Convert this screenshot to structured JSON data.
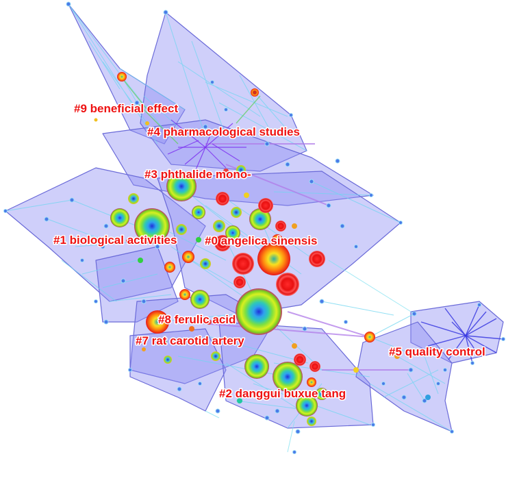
{
  "visualization": {
    "type": "co-citation cluster network",
    "colors": {
      "hull_fill": "#8c8cf2",
      "hull_stroke": "#6a6ad8",
      "label": "#ee1111",
      "edge_cool": "#6fd6f0",
      "edge_warm": "#b07be8",
      "hub_purple": "#7a2cf0"
    },
    "clusters": [
      {
        "id": "0",
        "label": "#0 angelica sinensis"
      },
      {
        "id": "1",
        "label": "#1 biological activities"
      },
      {
        "id": "2",
        "label": "#2 danggui buxue tang"
      },
      {
        "id": "3",
        "label": "#3 phthalide mono-"
      },
      {
        "id": "4",
        "label": "#4 pharmacological studies"
      },
      {
        "id": "5",
        "label": "#5 quality control"
      },
      {
        "id": "7",
        "label": "#7 rat carotid artery"
      },
      {
        "id": "8",
        "label": "#8 ferulic acid"
      },
      {
        "id": "9",
        "label": "#9 beneficial effect"
      }
    ]
  }
}
